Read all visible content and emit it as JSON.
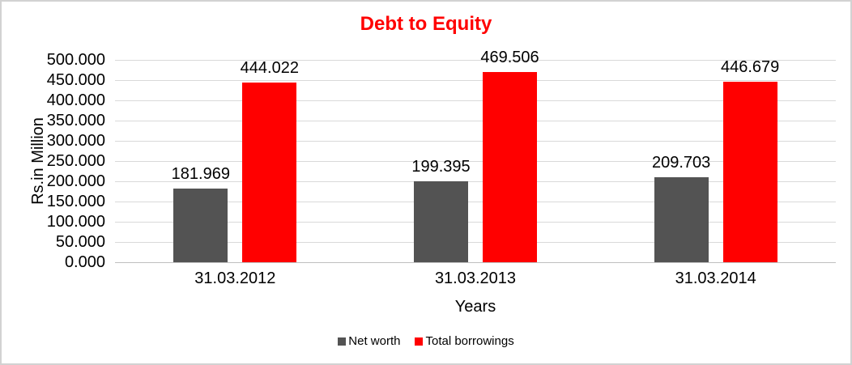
{
  "chart_data": {
    "type": "bar",
    "title": "Debt to Equity",
    "title_color": "#ff0000",
    "xlabel": "Years",
    "ylabel": "Rs.in Million",
    "categories": [
      "31.03.2012",
      "31.03.2013",
      "31.03.2014"
    ],
    "series": [
      {
        "name": "Net worth",
        "color": "#535353",
        "values": [
          181.969,
          199.395,
          209.703
        ],
        "labels": [
          "181.969",
          "199.395",
          "209.703"
        ]
      },
      {
        "name": "Total borrowings",
        "color": "#ff0000",
        "values": [
          444.022,
          469.506,
          446.679
        ],
        "labels": [
          "444.022",
          "469.506",
          "446.679"
        ]
      }
    ],
    "ylim": [
      0,
      500
    ],
    "ytick_step": 50,
    "yticks": [
      "0.000",
      "50.000",
      "100.000",
      "150.000",
      "200.000",
      "250.000",
      "300.000",
      "350.000",
      "400.000",
      "450.000",
      "500.000"
    ],
    "grid": true,
    "legend_position": "bottom",
    "gridline_color": "#d9d9d9"
  }
}
